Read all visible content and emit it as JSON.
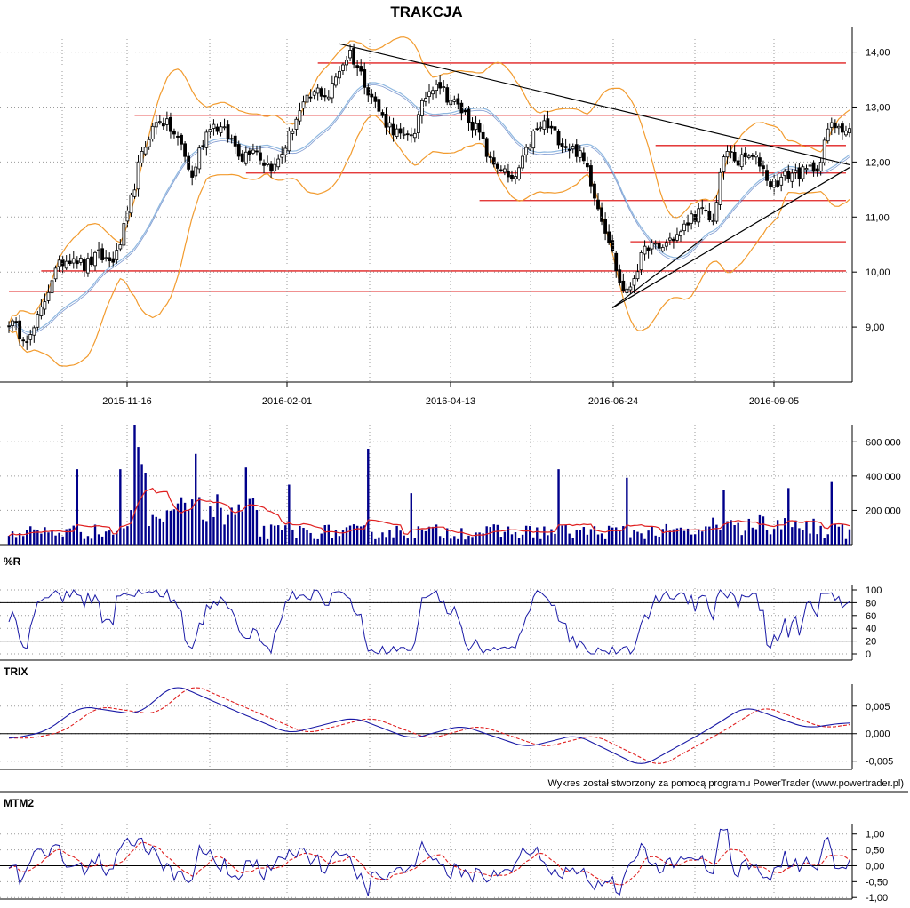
{
  "chart_data": {
    "type": "candlestick",
    "title": "TRAKCJA",
    "credit": "Wykres został stworzony za pomocą programu PowerTrader (www.powertrader.pl)",
    "x_dates": [
      "2015-11-16",
      "2016-02-01",
      "2016-04-13",
      "2016-06-24",
      "2016-09-05"
    ],
    "price": {
      "ylim": [
        8.0,
        14.3
      ],
      "ticks": [
        "9,00",
        "10,00",
        "11,00",
        "12,00",
        "13,00",
        "14,00"
      ],
      "tick_values": [
        9,
        10,
        11,
        12,
        13,
        14
      ],
      "close_anchors": [
        [
          0,
          9.1
        ],
        [
          3,
          8.9
        ],
        [
          6,
          8.8
        ],
        [
          9,
          9.3
        ],
        [
          12,
          9.9
        ],
        [
          15,
          10.2
        ],
        [
          18,
          10.3
        ],
        [
          21,
          10.1
        ],
        [
          25,
          10.3
        ],
        [
          28,
          10.2
        ],
        [
          30,
          10.3
        ],
        [
          33,
          11.0
        ],
        [
          36,
          11.9
        ],
        [
          39,
          12.5
        ],
        [
          42,
          12.8
        ],
        [
          45,
          12.6
        ],
        [
          48,
          12.3
        ],
        [
          51,
          11.7
        ],
        [
          53,
          12.2
        ],
        [
          56,
          12.7
        ],
        [
          59,
          12.6
        ],
        [
          62,
          12.4
        ],
        [
          65,
          12.1
        ],
        [
          68,
          12.3
        ],
        [
          71,
          12.0
        ],
        [
          74,
          11.9
        ],
        [
          77,
          12.3
        ],
        [
          80,
          12.8
        ],
        [
          83,
          13.1
        ],
        [
          86,
          13.3
        ],
        [
          89,
          13.2
        ],
        [
          92,
          13.7
        ],
        [
          95,
          14.0
        ],
        [
          98,
          13.6
        ],
        [
          101,
          13.2
        ],
        [
          104,
          12.8
        ],
        [
          107,
          12.6
        ],
        [
          110,
          12.4
        ],
        [
          113,
          12.6
        ],
        [
          116,
          13.2
        ],
        [
          119,
          13.5
        ],
        [
          122,
          13.2
        ],
        [
          125,
          13.0
        ],
        [
          128,
          12.8
        ],
        [
          131,
          12.5
        ],
        [
          134,
          12.0
        ],
        [
          137,
          11.9
        ],
        [
          140,
          11.6
        ],
        [
          143,
          12.0
        ],
        [
          146,
          12.5
        ],
        [
          149,
          12.7
        ],
        [
          152,
          12.5
        ],
        [
          155,
          12.3
        ],
        [
          158,
          12.2
        ],
        [
          161,
          11.9
        ],
        [
          164,
          11.2
        ],
        [
          167,
          10.6
        ],
        [
          170,
          9.8
        ],
        [
          172,
          9.6
        ],
        [
          175,
          10.1
        ],
        [
          178,
          10.5
        ],
        [
          181,
          10.4
        ],
        [
          184,
          10.6
        ],
        [
          187,
          10.7
        ],
        [
          190,
          11.0
        ],
        [
          193,
          11.1
        ],
        [
          196,
          10.9
        ],
        [
          198,
          11.8
        ],
        [
          200,
          12.2
        ],
        [
          203,
          12.0
        ],
        [
          206,
          12.1
        ],
        [
          209,
          12.0
        ],
        [
          212,
          11.6
        ],
        [
          215,
          11.7
        ],
        [
          218,
          11.8
        ],
        [
          221,
          11.8
        ],
        [
          224,
          11.9
        ],
        [
          226,
          12.0
        ],
        [
          228,
          12.6
        ],
        [
          231,
          12.7
        ],
        [
          233,
          12.6
        ]
      ],
      "resistance_lines": [
        {
          "from": 86,
          "to": 233,
          "y": 13.8
        },
        {
          "from": 35,
          "to": 233,
          "y": 12.85
        },
        {
          "from": 180,
          "to": 233,
          "y": 12.3
        },
        {
          "from": 66,
          "to": 233,
          "y": 11.8
        },
        {
          "from": 131,
          "to": 233,
          "y": 11.3
        },
        {
          "from": 173,
          "to": 233,
          "y": 10.55
        },
        {
          "from": 9,
          "to": 233,
          "y": 10.02
        },
        {
          "from": 0,
          "to": 233,
          "y": 9.65
        }
      ],
      "trend_lines": [
        {
          "x1": 92,
          "y1": 14.15,
          "x2": 234,
          "y2": 11.95
        },
        {
          "x1": 168,
          "y1": 9.35,
          "x2": 234,
          "y2": 11.9
        },
        {
          "x1": 168,
          "y1": 9.35,
          "x2": 193,
          "y2": 10.6
        }
      ]
    },
    "volume": {
      "ylim": [
        0,
        700000
      ],
      "ticks": [
        "200 000",
        "400 000",
        "600 000"
      ],
      "tick_values": [
        200000,
        400000,
        600000
      ],
      "spikes": [
        [
          19,
          440000
        ],
        [
          31,
          440000
        ],
        [
          35,
          700000
        ],
        [
          36,
          570000
        ],
        [
          37,
          470000
        ],
        [
          38,
          420000
        ],
        [
          52,
          530000
        ],
        [
          66,
          450000
        ],
        [
          78,
          350000
        ],
        [
          100,
          560000
        ],
        [
          112,
          300000
        ],
        [
          153,
          440000
        ],
        [
          172,
          390000
        ],
        [
          199,
          320000
        ],
        [
          217,
          330000
        ],
        [
          229,
          370000
        ]
      ]
    },
    "williams_r": {
      "label": "%R",
      "ylim": [
        0,
        100
      ],
      "ticks": [
        "0",
        "20",
        "40",
        "60",
        "80",
        "100"
      ],
      "tick_values": [
        0,
        20,
        40,
        60,
        80,
        100
      ],
      "levels": [
        20,
        80
      ]
    },
    "trix": {
      "label": "TRIX",
      "ylim": [
        -0.0065,
        0.009
      ],
      "ticks": [
        "-0,005",
        "0,000",
        "0,005"
      ],
      "tick_values": [
        -0.005,
        0,
        0.005
      ],
      "anchors": [
        [
          0,
          -0.001
        ],
        [
          10,
          0.0003
        ],
        [
          20,
          0.005
        ],
        [
          30,
          0.004
        ],
        [
          36,
          0.0035
        ],
        [
          46,
          0.009
        ],
        [
          60,
          0.005
        ],
        [
          78,
          0.0
        ],
        [
          96,
          0.003
        ],
        [
          112,
          -0.001
        ],
        [
          126,
          0.0015
        ],
        [
          144,
          -0.0025
        ],
        [
          158,
          -0.0002
        ],
        [
          176,
          -0.006
        ],
        [
          194,
          0.0005
        ],
        [
          205,
          0.005
        ],
        [
          222,
          0.001
        ],
        [
          233,
          0.002
        ]
      ]
    },
    "mtm2": {
      "label": "MTM2",
      "ylim": [
        -1.05,
        1.3
      ],
      "ticks": [
        "-1,00",
        "-0,50",
        "0,00",
        "0,50",
        "1,00"
      ],
      "tick_values": [
        -1.0,
        -0.5,
        0.0,
        0.5,
        1.0
      ]
    },
    "colors": {
      "candle": "#000000",
      "bollinger": "#f29b2e",
      "moving_average": "#8fb8e0",
      "support": "#e02020",
      "volume_bar": "#00008b",
      "volume_ma": "#e02020",
      "oscillator": "#1a1aa6",
      "signal": "#e02020",
      "grid": "#9a9a9a"
    }
  }
}
